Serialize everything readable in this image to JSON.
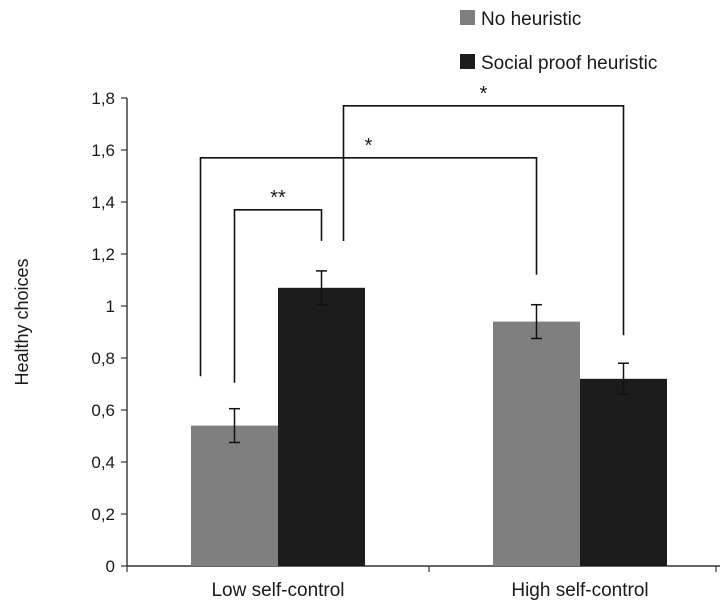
{
  "chart_data": {
    "type": "bar",
    "ylabel": "Healthy choices",
    "xlabel": "",
    "ylim": [
      0,
      1.8
    ],
    "yticks": [
      "0",
      "0,2",
      "0,4",
      "0,6",
      "0,8",
      "1",
      "1,2",
      "1,4",
      "1,6",
      "1,8"
    ],
    "categories": [
      "Low self-control",
      "High self-control"
    ],
    "series": [
      {
        "name": "No heuristic",
        "color": "#7f7f7f",
        "values": [
          0.54,
          0.94
        ],
        "errors": [
          0.065,
          0.065
        ]
      },
      {
        "name": "Social proof heuristic",
        "color": "#1c1c1c",
        "values": [
          1.07,
          0.72
        ],
        "errors": [
          0.065,
          0.06
        ]
      }
    ],
    "legend_position": "top-right",
    "grid": false,
    "significance": [
      {
        "label": "**",
        "from": [
          0,
          0
        ],
        "to": [
          0,
          1
        ]
      },
      {
        "label": "*",
        "from": [
          0,
          0
        ],
        "to": [
          1,
          0
        ]
      },
      {
        "label": "*",
        "from": [
          0,
          1
        ],
        "to": [
          1,
          1
        ]
      }
    ]
  }
}
